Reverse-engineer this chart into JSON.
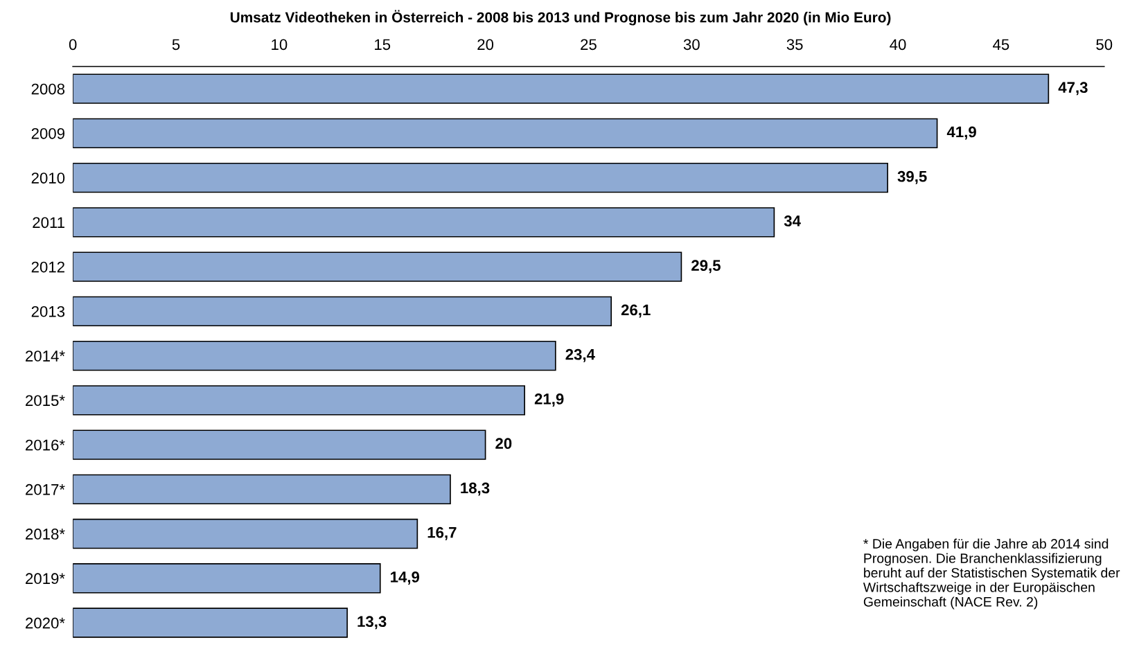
{
  "chart_data": {
    "type": "bar",
    "orientation": "horizontal",
    "title": "Umsatz Videotheken in Österreich - 2008 bis 2013 und Prognose bis zum Jahr 2020 (in Mio Euro)",
    "categories": [
      "2008",
      "2009",
      "2010",
      "2011",
      "2012",
      "2013",
      "2014*",
      "2015*",
      "2016*",
      "2017*",
      "2018*",
      "2019*",
      "2020*"
    ],
    "values": [
      47.3,
      41.9,
      39.5,
      34,
      29.5,
      26.1,
      23.4,
      21.9,
      20,
      18.3,
      16.7,
      14.9,
      13.3
    ],
    "value_labels": [
      "47,3",
      "41,9",
      "39,5",
      "34",
      "29,5",
      "26,1",
      "23,4",
      "21,9",
      "20",
      "18,3",
      "16,7",
      "14,9",
      "13,3"
    ],
    "color": "#8eaad3",
    "xlim": [
      0,
      50
    ],
    "xticks": [
      0,
      5,
      10,
      15,
      20,
      25,
      30,
      35,
      40,
      45,
      50
    ],
    "grid": false,
    "annotations": [
      "* Die Angaben für die Jahre ab 2014 sind Prognosen. Die Branchenklassifizierung beruht auf der Statistischen Systematik der Wirtschaftszweige in der Europäischen Gemeinschaft (NACE Rev. 2)"
    ]
  }
}
